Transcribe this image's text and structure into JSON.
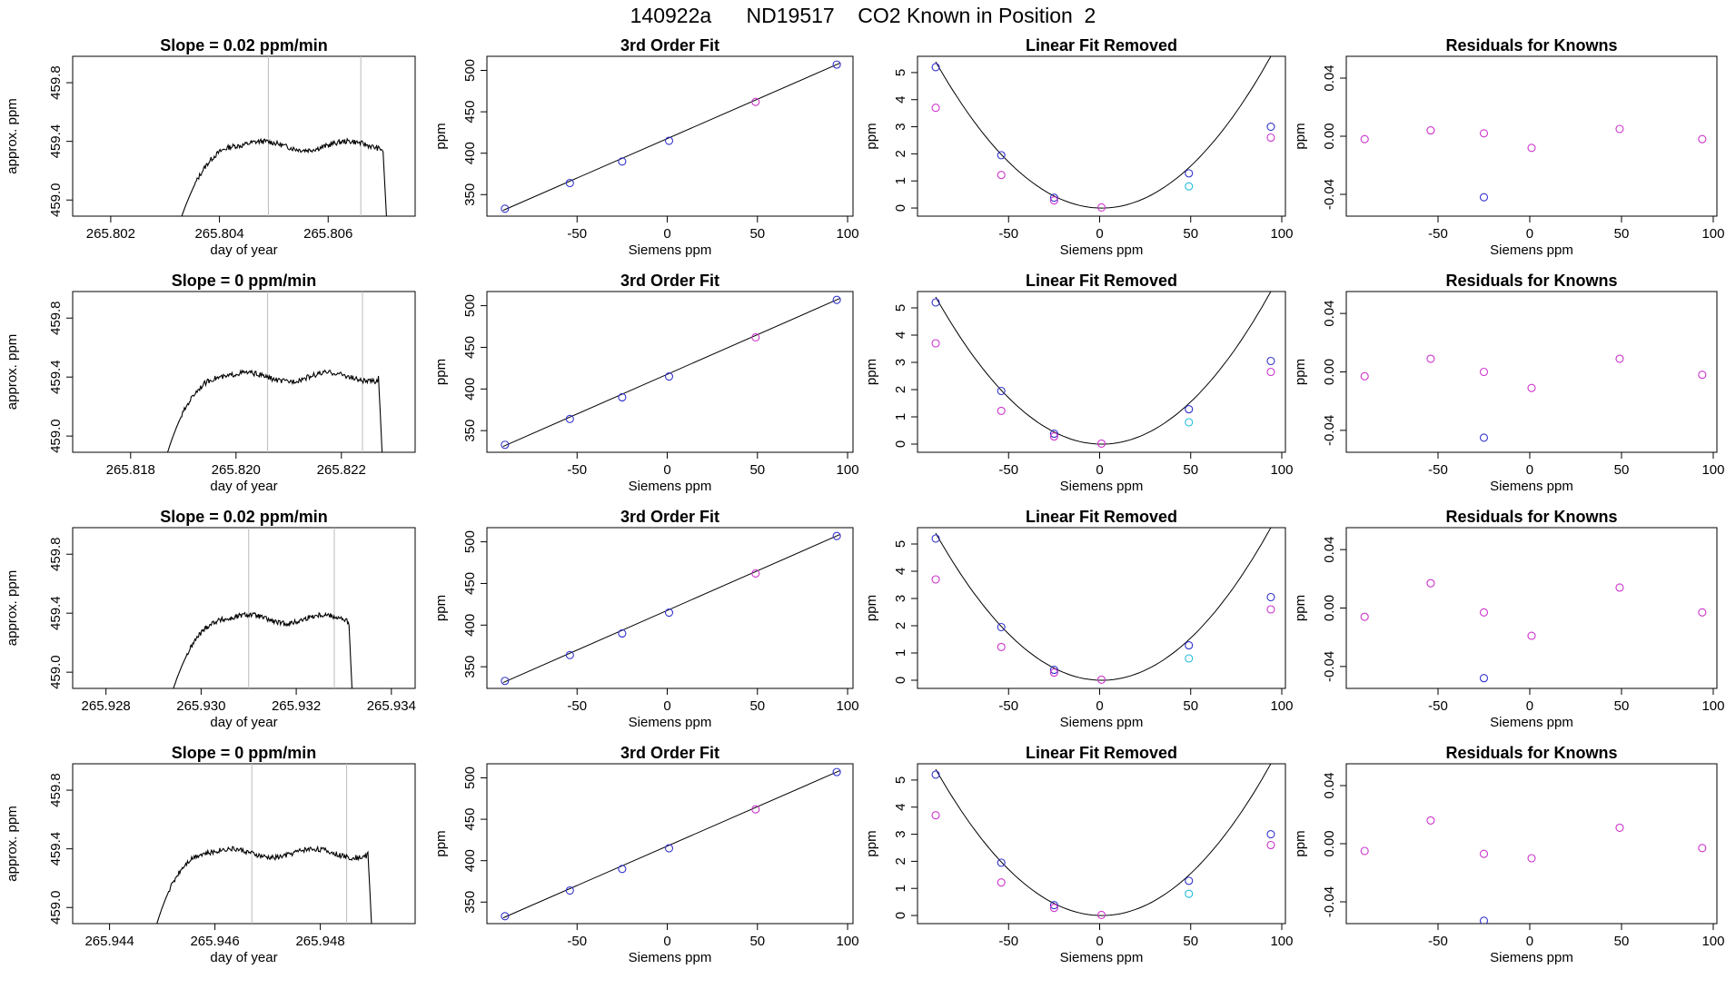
{
  "page": {
    "title": "140922a      ND19517    CO2 Known in Position  2"
  },
  "colors": {
    "blue": "#3333cc",
    "magenta": "#cc33cc",
    "cyan": "#22bbdd",
    "line": "#000000",
    "vline": "#bbbbbb",
    "red": "#dd6666"
  },
  "chart_data": [
    {
      "type": "line",
      "title": "Slope =  0.02  ppm/min",
      "xlabel": "day of year",
      "ylabel": "approx. ppm",
      "xlim": [
        265.8013,
        265.8076
      ],
      "ylim": [
        458.89,
        459.98
      ],
      "xticks": [
        265.802,
        265.804,
        265.806
      ],
      "xtick_labels": [
        "265.802",
        "265.804",
        "265.806"
      ],
      "yticks": [
        459.0,
        459.4,
        459.8
      ],
      "ytick_labels": [
        "459.0",
        "459.4",
        "459.8"
      ],
      "trace": {
        "start": 265.8032,
        "rise_end": 265.8044,
        "drop_start": 265.807,
        "drop_end": 265.8071,
        "plateau": 459.4
      },
      "vlines": [
        265.8049,
        265.8066
      ]
    },
    {
      "type": "scatter",
      "title": "3rd Order Fit",
      "xlabel": "Siemens ppm",
      "ylabel": "ppm",
      "xlim": [
        -100,
        103
      ],
      "ylim": [
        324,
        517
      ],
      "xticks": [
        -50,
        0,
        50,
        100
      ],
      "xtick_labels": [
        "-50",
        "0",
        "50",
        "100"
      ],
      "yticks": [
        350,
        400,
        450,
        500
      ],
      "ytick_labels": [
        "350",
        "400",
        "450",
        "500"
      ],
      "points": [
        {
          "x": -90,
          "y": 333,
          "c": "blue"
        },
        {
          "x": -54,
          "y": 364,
          "c": "blue"
        },
        {
          "x": -25,
          "y": 390,
          "c": "blue"
        },
        {
          "x": 1,
          "y": 415,
          "c": "blue"
        },
        {
          "x": 49,
          "y": 462,
          "c": "magenta"
        },
        {
          "x": 94,
          "y": 507,
          "c": "blue"
        }
      ],
      "fit": {
        "x0": -91,
        "y0": 331,
        "x1": 96,
        "y1": 509
      }
    },
    {
      "type": "scatter",
      "title": "Linear Fit Removed",
      "xlabel": "Siemens ppm",
      "ylabel": "ppm",
      "xlim": [
        -100,
        102
      ],
      "ylim": [
        -0.3,
        5.6
      ],
      "xticks": [
        -50,
        0,
        50,
        100
      ],
      "xtick_labels": [
        "-50",
        "0",
        "50",
        "100"
      ],
      "yticks": [
        0,
        1,
        2,
        3,
        4,
        5
      ],
      "ytick_labels": [
        "0",
        "1",
        "2",
        "3",
        "4",
        "5"
      ],
      "points": [
        {
          "x": -90,
          "y": 5.2,
          "c": "blue"
        },
        {
          "x": -90,
          "y": 3.7,
          "c": "magenta"
        },
        {
          "x": -54,
          "y": 1.95,
          "c": "blue"
        },
        {
          "x": -54,
          "y": 1.22,
          "c": "magenta"
        },
        {
          "x": -25,
          "y": 0.38,
          "c": "blue"
        },
        {
          "x": -25,
          "y": 0.28,
          "c": "magenta"
        },
        {
          "x": 1,
          "y": 0.02,
          "c": "magenta"
        },
        {
          "x": 49,
          "y": 1.28,
          "c": "blue"
        },
        {
          "x": 49,
          "y": 0.8,
          "c": "cyan"
        },
        {
          "x": 94,
          "y": 3.0,
          "c": "blue"
        },
        {
          "x": 94,
          "y": 2.6,
          "c": "magenta"
        }
      ],
      "curve": {
        "a": 0.00065,
        "b": -0.0015,
        "x0": -90,
        "x1": 96
      }
    },
    {
      "type": "scatter",
      "title": "Residuals for Knowns",
      "xlabel": "Siemens ppm",
      "ylabel": "ppm",
      "xlim": [
        -100,
        102
      ],
      "ylim": [
        -0.055,
        0.055
      ],
      "xticks": [
        -50,
        0,
        50,
        100
      ],
      "xtick_labels": [
        "-50",
        "0",
        "50",
        "100"
      ],
      "yticks": [
        -0.04,
        0,
        0.04
      ],
      "ytick_labels": [
        "-0.04",
        "0.00",
        "0.04"
      ],
      "points": [
        {
          "x": -90,
          "y": -0.002,
          "c": "magenta"
        },
        {
          "x": -54,
          "y": 0.004,
          "c": "magenta"
        },
        {
          "x": -25,
          "y": 0.002,
          "c": "magenta"
        },
        {
          "x": -25,
          "y": -0.042,
          "c": "blue"
        },
        {
          "x": 1,
          "y": -0.008,
          "c": "magenta"
        },
        {
          "x": 49,
          "y": 0.005,
          "c": "magenta"
        },
        {
          "x": 94,
          "y": -0.002,
          "c": "magenta"
        }
      ]
    },
    {
      "type": "line",
      "title": "Slope =  0  ppm/min",
      "xlabel": "day of year",
      "ylabel": "approx. ppm",
      "xlim": [
        265.8169,
        265.8234
      ],
      "ylim": [
        458.89,
        459.98
      ],
      "xticks": [
        265.818,
        265.82,
        265.822
      ],
      "xtick_labels": [
        "265.818",
        "265.820",
        "265.822"
      ],
      "yticks": [
        459.0,
        459.4,
        459.8
      ],
      "ytick_labels": [
        "459.0",
        "459.4",
        "459.8"
      ],
      "trace": {
        "start": 265.8186,
        "rise_end": 265.8198,
        "drop_start": 265.8227,
        "drop_end": 265.8228,
        "plateau": 459.43
      },
      "vlines": [
        265.8206,
        265.8224
      ]
    },
    {
      "type": "scatter",
      "title": "3rd Order Fit",
      "xlabel": "Siemens ppm",
      "ylabel": "ppm",
      "xlim": [
        -100,
        103
      ],
      "ylim": [
        324,
        517
      ],
      "xticks": [
        -50,
        0,
        50,
        100
      ],
      "xtick_labels": [
        "-50",
        "0",
        "50",
        "100"
      ],
      "yticks": [
        350,
        400,
        450,
        500
      ],
      "ytick_labels": [
        "350",
        "400",
        "450",
        "500"
      ],
      "points": [
        {
          "x": -90,
          "y": 333,
          "c": "blue"
        },
        {
          "x": -54,
          "y": 364,
          "c": "blue"
        },
        {
          "x": -25,
          "y": 390,
          "c": "blue"
        },
        {
          "x": 1,
          "y": 415,
          "c": "blue"
        },
        {
          "x": 49,
          "y": 462,
          "c": "magenta"
        },
        {
          "x": 94,
          "y": 507,
          "c": "blue"
        }
      ],
      "fit": {
        "x0": -91,
        "y0": 331,
        "x1": 96,
        "y1": 509
      }
    },
    {
      "type": "scatter",
      "title": "Linear Fit Removed",
      "xlabel": "Siemens ppm",
      "ylabel": "ppm",
      "xlim": [
        -100,
        102
      ],
      "ylim": [
        -0.3,
        5.6
      ],
      "xticks": [
        -50,
        0,
        50,
        100
      ],
      "xtick_labels": [
        "-50",
        "0",
        "50",
        "100"
      ],
      "yticks": [
        0,
        1,
        2,
        3,
        4,
        5
      ],
      "ytick_labels": [
        "0",
        "1",
        "2",
        "3",
        "4",
        "5"
      ],
      "points": [
        {
          "x": -90,
          "y": 5.2,
          "c": "blue"
        },
        {
          "x": -90,
          "y": 3.7,
          "c": "magenta"
        },
        {
          "x": -54,
          "y": 1.95,
          "c": "blue"
        },
        {
          "x": -54,
          "y": 1.22,
          "c": "magenta"
        },
        {
          "x": -25,
          "y": 0.38,
          "c": "blue"
        },
        {
          "x": -25,
          "y": 0.28,
          "c": "magenta"
        },
        {
          "x": 1,
          "y": 0.02,
          "c": "magenta"
        },
        {
          "x": 49,
          "y": 1.28,
          "c": "blue"
        },
        {
          "x": 49,
          "y": 0.8,
          "c": "cyan"
        },
        {
          "x": 94,
          "y": 3.05,
          "c": "blue"
        },
        {
          "x": 94,
          "y": 2.65,
          "c": "magenta"
        }
      ],
      "curve": {
        "a": 0.00065,
        "b": -0.0015,
        "x0": -90,
        "x1": 96
      }
    },
    {
      "type": "scatter",
      "title": "Residuals for Knowns",
      "xlabel": "Siemens ppm",
      "ylabel": "ppm",
      "xlim": [
        -100,
        102
      ],
      "ylim": [
        -0.055,
        0.055
      ],
      "xticks": [
        -50,
        0,
        50,
        100
      ],
      "xtick_labels": [
        "-50",
        "0",
        "50",
        "100"
      ],
      "yticks": [
        -0.04,
        0,
        0.04
      ],
      "ytick_labels": [
        "-0.04",
        "0.00",
        "0.04"
      ],
      "points": [
        {
          "x": -90,
          "y": -0.003,
          "c": "magenta"
        },
        {
          "x": -54,
          "y": 0.009,
          "c": "magenta"
        },
        {
          "x": -25,
          "y": 0.0,
          "c": "magenta"
        },
        {
          "x": -25,
          "y": -0.045,
          "c": "blue"
        },
        {
          "x": 1,
          "y": -0.011,
          "c": "magenta"
        },
        {
          "x": 49,
          "y": 0.009,
          "c": "magenta"
        },
        {
          "x": 94,
          "y": -0.002,
          "c": "magenta"
        }
      ]
    },
    {
      "type": "line",
      "title": "Slope =  0.02  ppm/min",
      "xlabel": "day of year",
      "ylabel": "approx. ppm",
      "xlim": [
        265.9273,
        265.9345
      ],
      "ylim": [
        458.89,
        459.98
      ],
      "xticks": [
        265.928,
        265.93,
        265.932,
        265.934
      ],
      "xtick_labels": [
        "265.928",
        "265.930",
        "265.932",
        "265.934"
      ],
      "yticks": [
        459.0,
        459.4,
        459.8
      ],
      "ytick_labels": [
        "459.0",
        "459.4",
        "459.8"
      ],
      "trace": {
        "start": 265.9293,
        "rise_end": 265.9306,
        "drop_start": 265.9331,
        "drop_end": 265.9332,
        "plateau": 459.39
      },
      "vlines": [
        265.931,
        265.9328
      ]
    },
    {
      "type": "scatter",
      "title": "3rd Order Fit",
      "xlabel": "Siemens ppm",
      "ylabel": "ppm",
      "xlim": [
        -100,
        103
      ],
      "ylim": [
        324,
        517
      ],
      "xticks": [
        -50,
        0,
        50,
        100
      ],
      "xtick_labels": [
        "-50",
        "0",
        "50",
        "100"
      ],
      "yticks": [
        350,
        400,
        450,
        500
      ],
      "ytick_labels": [
        "350",
        "400",
        "450",
        "500"
      ],
      "points": [
        {
          "x": -90,
          "y": 333,
          "c": "blue"
        },
        {
          "x": -54,
          "y": 364,
          "c": "blue"
        },
        {
          "x": -25,
          "y": 390,
          "c": "blue"
        },
        {
          "x": 1,
          "y": 415,
          "c": "blue"
        },
        {
          "x": 49,
          "y": 462,
          "c": "magenta"
        },
        {
          "x": 94,
          "y": 507,
          "c": "blue"
        }
      ],
      "fit": {
        "x0": -91,
        "y0": 331,
        "x1": 96,
        "y1": 509
      }
    },
    {
      "type": "scatter",
      "title": "Linear Fit Removed",
      "xlabel": "Siemens ppm",
      "ylabel": "ppm",
      "xlim": [
        -100,
        102
      ],
      "ylim": [
        -0.3,
        5.6
      ],
      "xticks": [
        -50,
        0,
        50,
        100
      ],
      "xtick_labels": [
        "-50",
        "0",
        "50",
        "100"
      ],
      "yticks": [
        0,
        1,
        2,
        3,
        4,
        5
      ],
      "ytick_labels": [
        "0",
        "1",
        "2",
        "3",
        "4",
        "5"
      ],
      "points": [
        {
          "x": -90,
          "y": 5.2,
          "c": "blue"
        },
        {
          "x": -90,
          "y": 3.7,
          "c": "magenta"
        },
        {
          "x": -54,
          "y": 1.95,
          "c": "blue"
        },
        {
          "x": -54,
          "y": 1.22,
          "c": "magenta"
        },
        {
          "x": -25,
          "y": 0.38,
          "c": "blue"
        },
        {
          "x": -25,
          "y": 0.28,
          "c": "magenta"
        },
        {
          "x": 1,
          "y": 0.02,
          "c": "magenta"
        },
        {
          "x": 49,
          "y": 1.28,
          "c": "blue"
        },
        {
          "x": 49,
          "y": 0.8,
          "c": "cyan"
        },
        {
          "x": 94,
          "y": 3.05,
          "c": "blue"
        },
        {
          "x": 94,
          "y": 2.6,
          "c": "magenta"
        }
      ],
      "curve": {
        "a": 0.00065,
        "b": -0.0015,
        "x0": -90,
        "x1": 96
      }
    },
    {
      "type": "scatter",
      "title": "Residuals for Knowns",
      "xlabel": "Siemens ppm",
      "ylabel": "ppm",
      "xlim": [
        -100,
        102
      ],
      "ylim": [
        -0.055,
        0.055
      ],
      "xticks": [
        -50,
        0,
        50,
        100
      ],
      "xtick_labels": [
        "-50",
        "0",
        "50",
        "100"
      ],
      "yticks": [
        -0.04,
        0,
        0.04
      ],
      "ytick_labels": [
        "-0.04",
        "0.00",
        "0.04"
      ],
      "points": [
        {
          "x": -90,
          "y": -0.006,
          "c": "magenta"
        },
        {
          "x": -54,
          "y": 0.017,
          "c": "magenta"
        },
        {
          "x": -25,
          "y": -0.003,
          "c": "magenta"
        },
        {
          "x": -25,
          "y": -0.048,
          "c": "blue"
        },
        {
          "x": 1,
          "y": -0.019,
          "c": "magenta"
        },
        {
          "x": 49,
          "y": 0.014,
          "c": "magenta"
        },
        {
          "x": 94,
          "y": -0.003,
          "c": "magenta"
        }
      ]
    },
    {
      "type": "line",
      "title": "Slope =  0  ppm/min",
      "xlabel": "day of year",
      "ylabel": "approx. ppm",
      "xlim": [
        265.9433,
        265.9498
      ],
      "ylim": [
        458.89,
        459.98
      ],
      "xticks": [
        265.944,
        265.946,
        265.948
      ],
      "xtick_labels": [
        "265.944",
        "265.946",
        "265.948"
      ],
      "yticks": [
        459.0,
        459.4,
        459.8
      ],
      "ytick_labels": [
        "459.0",
        "459.4",
        "459.8"
      ],
      "trace": {
        "start": 265.9448,
        "rise_end": 265.9459,
        "drop_start": 265.9489,
        "drop_end": 265.949,
        "plateau": 459.4
      },
      "vlines": [
        265.9467,
        265.9485
      ]
    },
    {
      "type": "scatter",
      "title": "3rd Order Fit",
      "xlabel": "Siemens ppm",
      "ylabel": "ppm",
      "xlim": [
        -100,
        103
      ],
      "ylim": [
        324,
        517
      ],
      "xticks": [
        -50,
        0,
        50,
        100
      ],
      "xtick_labels": [
        "-50",
        "0",
        "50",
        "100"
      ],
      "yticks": [
        350,
        400,
        450,
        500
      ],
      "ytick_labels": [
        "350",
        "400",
        "450",
        "500"
      ],
      "points": [
        {
          "x": -90,
          "y": 333,
          "c": "blue"
        },
        {
          "x": -54,
          "y": 364,
          "c": "blue"
        },
        {
          "x": -25,
          "y": 390,
          "c": "blue"
        },
        {
          "x": 1,
          "y": 415,
          "c": "blue"
        },
        {
          "x": 49,
          "y": 462,
          "c": "magenta"
        },
        {
          "x": 94,
          "y": 507,
          "c": "blue"
        }
      ],
      "fit": {
        "x0": -91,
        "y0": 331,
        "x1": 96,
        "y1": 509
      }
    },
    {
      "type": "scatter",
      "title": "Linear Fit Removed",
      "xlabel": "Siemens ppm",
      "ylabel": "ppm",
      "xlim": [
        -100,
        102
      ],
      "ylim": [
        -0.3,
        5.6
      ],
      "xticks": [
        -50,
        0,
        50,
        100
      ],
      "xtick_labels": [
        "-50",
        "0",
        "50",
        "100"
      ],
      "yticks": [
        0,
        1,
        2,
        3,
        4,
        5
      ],
      "ytick_labels": [
        "0",
        "1",
        "2",
        "3",
        "4",
        "5"
      ],
      "points": [
        {
          "x": -90,
          "y": 5.2,
          "c": "blue"
        },
        {
          "x": -90,
          "y": 3.7,
          "c": "magenta"
        },
        {
          "x": -54,
          "y": 1.95,
          "c": "blue"
        },
        {
          "x": -54,
          "y": 1.22,
          "c": "magenta"
        },
        {
          "x": -25,
          "y": 0.38,
          "c": "blue"
        },
        {
          "x": -25,
          "y": 0.28,
          "c": "magenta"
        },
        {
          "x": 1,
          "y": 0.02,
          "c": "magenta"
        },
        {
          "x": 49,
          "y": 1.28,
          "c": "blue"
        },
        {
          "x": 49,
          "y": 0.8,
          "c": "cyan"
        },
        {
          "x": 94,
          "y": 3.0,
          "c": "blue"
        },
        {
          "x": 94,
          "y": 2.6,
          "c": "magenta"
        }
      ],
      "curve": {
        "a": 0.00065,
        "b": -0.0015,
        "x0": -90,
        "x1": 96
      }
    },
    {
      "type": "scatter",
      "title": "Residuals for Knowns",
      "xlabel": "Siemens ppm",
      "ylabel": "ppm",
      "xlim": [
        -100,
        102
      ],
      "ylim": [
        -0.055,
        0.055
      ],
      "xticks": [
        -50,
        0,
        50,
        100
      ],
      "xtick_labels": [
        "-50",
        "0",
        "50",
        "100"
      ],
      "yticks": [
        -0.04,
        0,
        0.04
      ],
      "ytick_labels": [
        "-0.04",
        "0.00",
        "0.04"
      ],
      "points": [
        {
          "x": -90,
          "y": -0.005,
          "c": "magenta"
        },
        {
          "x": -54,
          "y": 0.016,
          "c": "magenta"
        },
        {
          "x": -25,
          "y": -0.007,
          "c": "magenta"
        },
        {
          "x": -25,
          "y": -0.053,
          "c": "blue"
        },
        {
          "x": 1,
          "y": -0.01,
          "c": "magenta"
        },
        {
          "x": 49,
          "y": 0.011,
          "c": "magenta"
        },
        {
          "x": 94,
          "y": -0.003,
          "c": "magenta"
        }
      ]
    }
  ]
}
